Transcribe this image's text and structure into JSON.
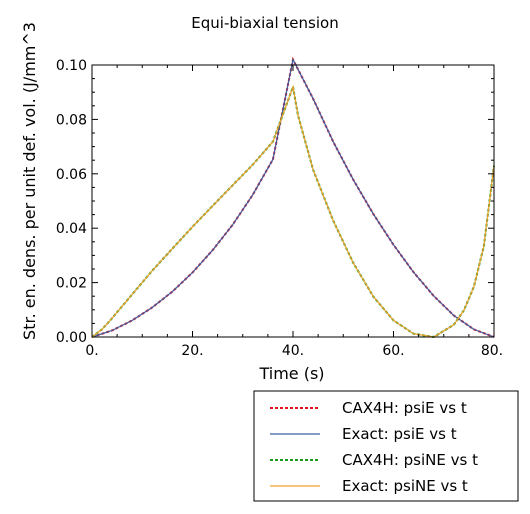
{
  "chart_data": {
    "type": "line",
    "title": "Equi-biaxial tension",
    "xlabel": "Time (s)",
    "ylabel": "Str. en. dens. per unit def. vol. (J/mm^3",
    "xlim": [
      0,
      80
    ],
    "ylim": [
      0,
      0.1
    ],
    "grid": false,
    "legend_position": "bottom-right, outside plot",
    "x_ticks": [
      0,
      20,
      40,
      60,
      80
    ],
    "x_tick_labels": [
      "0.",
      "20.",
      "40.",
      "60.",
      "80."
    ],
    "y_ticks": [
      0,
      0.02,
      0.04,
      0.06,
      0.08,
      0.1
    ],
    "y_tick_labels": [
      "0.00",
      "0.02",
      "0.04",
      "0.06",
      "0.08",
      "0.10"
    ],
    "series": [
      {
        "name": "CAX4H: psiE vs t",
        "color": "#e8101c",
        "dash": "dotted",
        "x": [
          0,
          4,
          8,
          12,
          16,
          20,
          24,
          28,
          32,
          36,
          40,
          44,
          48,
          52,
          56,
          60,
          64,
          68,
          72,
          76,
          80
        ],
        "y": [
          0,
          0.0024,
          0.0061,
          0.0109,
          0.0167,
          0.0237,
          0.0319,
          0.0413,
          0.0523,
          0.0653,
          0.102,
          0.0876,
          0.0718,
          0.0578,
          0.0452,
          0.0339,
          0.0238,
          0.0151,
          0.0079,
          0.0028,
          0
        ]
      },
      {
        "name": "Exact: psiE vs t",
        "color": "#3b5fa0",
        "dash": "solid",
        "x": [
          0,
          4,
          8,
          12,
          16,
          20,
          24,
          28,
          32,
          36,
          40,
          44,
          48,
          52,
          56,
          60,
          64,
          68,
          72,
          76,
          80
        ],
        "y": [
          0,
          0.0024,
          0.0061,
          0.0109,
          0.0167,
          0.0237,
          0.0319,
          0.0413,
          0.0523,
          0.0653,
          0.102,
          0.0876,
          0.0718,
          0.0578,
          0.0452,
          0.0339,
          0.0238,
          0.0151,
          0.0079,
          0.0028,
          0
        ]
      },
      {
        "name": "CAX4H: psiNE vs t",
        "color": "#1a9a1a",
        "dash": "dotted",
        "x": [
          0,
          2,
          4,
          8,
          12,
          16,
          20,
          24,
          28,
          32,
          36,
          40,
          41,
          44,
          48,
          52,
          56,
          60,
          64,
          68,
          72,
          74,
          76,
          78,
          80
        ],
        "y": [
          0,
          0.0028,
          0.0069,
          0.0157,
          0.0244,
          0.0325,
          0.0405,
          0.0482,
          0.0558,
          0.0634,
          0.0718,
          0.092,
          0.0815,
          0.0615,
          0.0428,
          0.0272,
          0.0148,
          0.0061,
          0.0012,
          0,
          0.0045,
          0.0098,
          0.0185,
          0.0335,
          0.063
        ]
      },
      {
        "name": "Exact: psiNE vs t",
        "color": "#f0a030",
        "dash": "solid",
        "x": [
          0,
          2,
          4,
          8,
          12,
          16,
          20,
          24,
          28,
          32,
          36,
          40,
          41,
          44,
          48,
          52,
          56,
          60,
          64,
          68,
          72,
          74,
          76,
          78,
          80
        ],
        "y": [
          0,
          0.0028,
          0.0069,
          0.0157,
          0.0244,
          0.0325,
          0.0405,
          0.0482,
          0.0558,
          0.0634,
          0.0718,
          0.092,
          0.0815,
          0.0615,
          0.0428,
          0.0272,
          0.0148,
          0.0061,
          0.0012,
          0,
          0.0045,
          0.0098,
          0.0185,
          0.0335,
          0.063
        ]
      }
    ]
  }
}
